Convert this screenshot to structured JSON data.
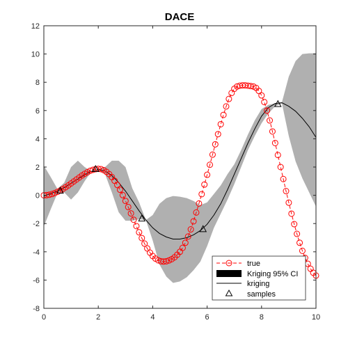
{
  "chart_data": {
    "type": "line",
    "title": "DACE",
    "xlabel": "",
    "ylabel": "",
    "xlim": [
      0,
      10
    ],
    "ylim": [
      -8,
      12
    ],
    "x_ticks": [
      0,
      2,
      4,
      6,
      8,
      10
    ],
    "y_ticks": [
      -8,
      -6,
      -4,
      -2,
      0,
      2,
      4,
      6,
      8,
      10,
      12
    ],
    "x_tick_labels": [
      "0",
      "2",
      "4",
      "6",
      "8",
      "10"
    ],
    "y_tick_labels": [
      "-8",
      "-6",
      "-4",
      "-2",
      "0",
      "2",
      "4",
      "6",
      "8",
      "10",
      "12"
    ],
    "grid": false,
    "legend_position": "bottom-right",
    "legend": [
      {
        "label": "true",
        "style": "red dashed line with circle markers"
      },
      {
        "label": "Kriging 95% CI",
        "style": "gray filled band"
      },
      {
        "label": "kriging",
        "style": "black line"
      },
      {
        "label": "samples",
        "style": "black triangle markers"
      }
    ],
    "true_function": {
      "name": "true",
      "color": "#ff0000",
      "x": [
        0.0,
        0.1,
        0.2,
        0.3,
        0.4,
        0.5,
        0.6,
        0.7,
        0.8,
        0.9,
        1.0,
        1.1,
        1.2,
        1.3,
        1.4,
        1.5,
        1.6,
        1.7,
        1.8,
        1.9,
        2.0,
        2.1,
        2.2,
        2.3,
        2.4,
        2.5,
        2.6,
        2.7,
        2.8,
        2.9,
        3.0,
        3.1,
        3.2,
        3.3,
        3.4,
        3.5,
        3.6,
        3.7,
        3.8,
        3.9,
        4.0,
        4.1,
        4.2,
        4.3,
        4.4,
        4.5,
        4.6,
        4.7,
        4.8,
        4.9,
        5.0,
        5.1,
        5.2,
        5.3,
        5.4,
        5.5,
        5.6,
        5.7,
        5.8,
        5.9,
        6.0,
        6.1,
        6.2,
        6.3,
        6.4,
        6.5,
        6.6,
        6.7,
        6.8,
        6.9,
        7.0,
        7.1,
        7.2,
        7.3,
        7.4,
        7.5,
        7.6,
        7.7,
        7.8,
        7.9,
        8.0,
        8.1,
        8.2,
        8.3,
        8.4,
        8.5,
        8.6,
        8.7,
        8.8,
        8.9,
        9.0,
        9.1,
        9.2,
        9.3,
        9.4,
        9.5,
        9.6,
        9.7,
        9.8,
        9.9,
        10.0
      ],
      "y": [
        0.0,
        0.01,
        0.04,
        0.09,
        0.16,
        0.24,
        0.34,
        0.45,
        0.57,
        0.7,
        0.84,
        0.98,
        1.12,
        1.26,
        1.4,
        1.52,
        1.63,
        1.73,
        1.8,
        1.85,
        1.87,
        1.85,
        1.78,
        1.66,
        1.5,
        1.29,
        1.03,
        0.73,
        0.39,
        0.01,
        -0.4,
        -0.83,
        -1.28,
        -1.73,
        -2.18,
        -2.62,
        -3.03,
        -3.42,
        -3.76,
        -4.06,
        -4.3,
        -4.48,
        -4.6,
        -4.67,
        -4.69,
        -4.67,
        -4.61,
        -4.52,
        -4.39,
        -4.21,
        -4.0,
        -3.72,
        -3.36,
        -2.92,
        -2.41,
        -1.84,
        -1.22,
        -0.58,
        0.08,
        0.76,
        1.45,
        2.16,
        2.88,
        3.61,
        4.33,
        5.03,
        5.69,
        6.29,
        6.82,
        7.24,
        7.54,
        7.7,
        7.76,
        7.78,
        7.78,
        7.76,
        7.73,
        7.7,
        7.6,
        7.39,
        7.07,
        6.6,
        6.0,
        5.3,
        4.52,
        3.7,
        2.85,
        2.0,
        1.15,
        0.3,
        -0.52,
        -1.3,
        -2.04,
        -2.73,
        -3.36,
        -3.93,
        -4.43,
        -4.85,
        -5.2,
        -5.48,
        -5.68
      ]
    },
    "kriging": {
      "name": "kriging",
      "color": "#000000",
      "x": [
        0.0,
        0.25,
        0.5,
        0.75,
        1.0,
        1.25,
        1.5,
        1.75,
        2.0,
        2.25,
        2.5,
        2.75,
        3.0,
        3.25,
        3.5,
        3.75,
        4.0,
        4.25,
        4.5,
        4.75,
        5.0,
        5.25,
        5.5,
        5.75,
        6.0,
        6.25,
        6.5,
        6.75,
        7.0,
        7.25,
        7.5,
        7.75,
        8.0,
        8.25,
        8.5,
        8.75,
        9.0,
        9.25,
        9.5,
        9.75,
        10.0
      ],
      "y": [
        -0.05,
        0.12,
        0.3,
        0.55,
        0.85,
        1.15,
        1.45,
        1.7,
        1.82,
        1.72,
        1.4,
        0.9,
        0.3,
        -0.4,
        -1.1,
        -1.75,
        -2.3,
        -2.7,
        -2.95,
        -3.1,
        -3.1,
        -3.0,
        -2.8,
        -2.5,
        -2.05,
        -1.4,
        -0.6,
        0.4,
        1.5,
        2.6,
        3.7,
        4.7,
        5.6,
        6.2,
        6.5,
        6.55,
        6.3,
        5.95,
        5.45,
        4.85,
        4.1
      ]
    },
    "confidence_interval": {
      "name": "Kriging 95% CI",
      "color": "#b0b0b0",
      "x": [
        0.0,
        0.25,
        0.5,
        0.75,
        1.0,
        1.25,
        1.5,
        1.75,
        2.0,
        2.25,
        2.5,
        2.75,
        3.0,
        3.25,
        3.5,
        3.75,
        4.0,
        4.25,
        4.5,
        4.75,
        5.0,
        5.25,
        5.5,
        5.75,
        6.0,
        6.25,
        6.5,
        6.75,
        7.0,
        7.25,
        7.5,
        7.75,
        8.0,
        8.25,
        8.5,
        8.75,
        9.0,
        9.25,
        9.5,
        9.75,
        10.0
      ],
      "lower": [
        -2.2,
        -1.0,
        0.15,
        0.2,
        -0.3,
        0.2,
        1.0,
        1.7,
        1.82,
        1.5,
        0.2,
        -1.2,
        -1.8,
        -1.8,
        -1.7,
        -1.75,
        -3.2,
        -4.9,
        -5.75,
        -6.2,
        -6.1,
        -5.8,
        -5.3,
        -4.7,
        -3.6,
        -2.3,
        -1.3,
        -0.3,
        0.8,
        2.0,
        3.2,
        4.2,
        5.1,
        5.8,
        6.3,
        6.5,
        4.2,
        2.4,
        1.2,
        0.2,
        -0.8
      ],
      "upper": [
        2.1,
        1.3,
        0.45,
        0.9,
        2.0,
        2.45,
        2.0,
        1.7,
        1.82,
        2.0,
        2.45,
        2.45,
        2.0,
        0.5,
        -0.5,
        -1.75,
        -1.4,
        -0.6,
        -0.2,
        -0.05,
        -0.1,
        -0.2,
        -0.4,
        -0.7,
        -0.5,
        0.1,
        0.7,
        1.5,
        2.2,
        3.2,
        4.3,
        5.3,
        6.1,
        6.4,
        6.5,
        6.6,
        8.4,
        9.5,
        10.0,
        10.05,
        10.05
      ]
    },
    "samples": {
      "name": "samples",
      "color": "#000000",
      "x": [
        0.6,
        1.9,
        3.6,
        5.85,
        8.6
      ],
      "y": [
        0.32,
        1.85,
        -1.65,
        -2.4,
        6.45
      ]
    }
  }
}
